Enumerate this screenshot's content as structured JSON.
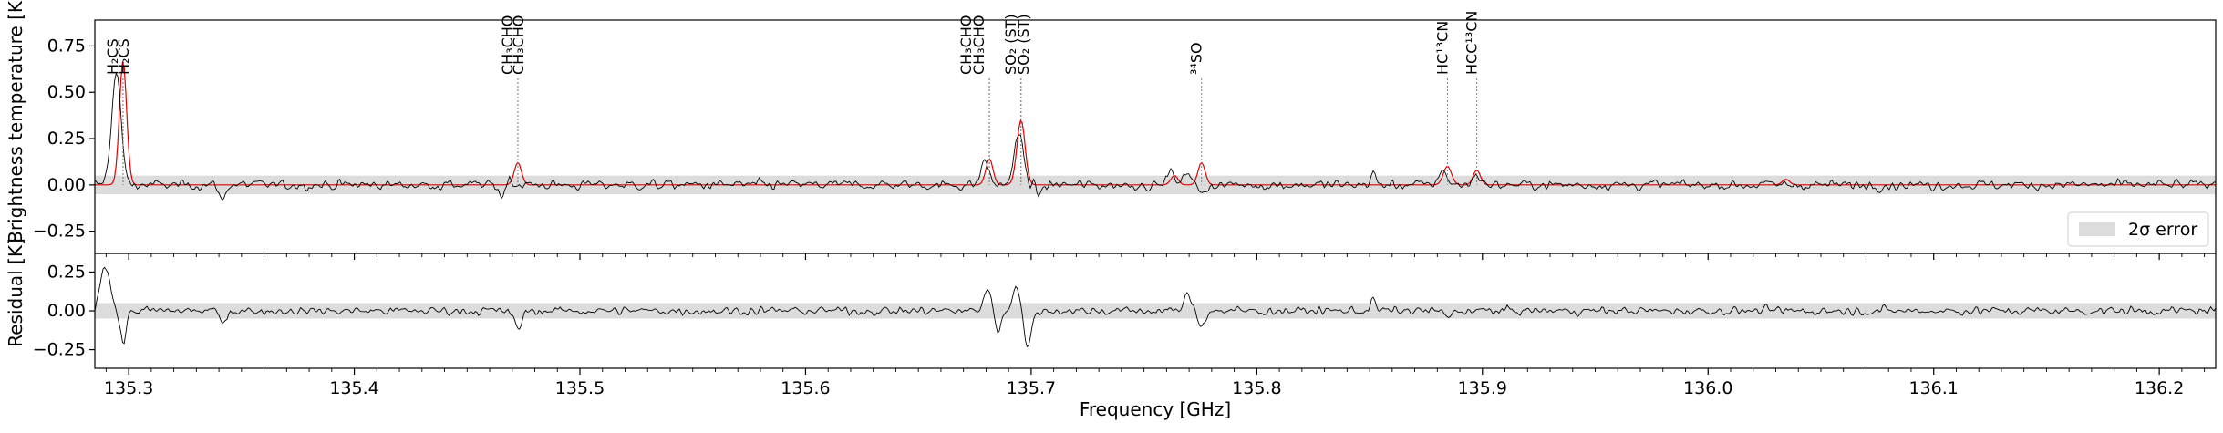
{
  "chart_data": [
    {
      "type": "line",
      "panel": "spectrum",
      "xlabel": "Frequency [GHz]",
      "ylabel": "Brightness temperature [K]",
      "xlim": [
        135.285,
        136.225
      ],
      "ylim": [
        -0.37,
        0.89
      ],
      "x_ticks": [
        "135.3",
        "135.4",
        "135.5",
        "135.6",
        "135.7",
        "135.8",
        "135.9",
        "136.0",
        "136.1",
        "136.2"
      ],
      "y_ticks": [
        "0.75",
        "0.50",
        "0.25",
        "0.00",
        "−0.25"
      ],
      "y_tick_values": [
        0.75,
        0.5,
        0.25,
        0.0,
        -0.25
      ],
      "grid": false,
      "noise_band": {
        "label": "2σ error",
        "ymin": -0.05,
        "ymax": 0.05,
        "color": "#dcdcdc"
      },
      "legend": {
        "position": "lower-right",
        "entries": [
          "2σ error"
        ]
      },
      "colors": {
        "observed": "#000000",
        "model": "#e00000",
        "band": "#dcdcdc",
        "marker": "#808080"
      },
      "line_markers": [
        {
          "label": "H₂CS",
          "freq": 135.2975,
          "label_offset": -6
        },
        {
          "label": "H₂CS",
          "freq": 135.2975,
          "label_offset": 6
        },
        {
          "label": "CH₃CHO",
          "freq": 135.4725,
          "label_offset": -6
        },
        {
          "label": "CH₃CHO",
          "freq": 135.4725,
          "label_offset": 6
        },
        {
          "label": "CH₃CHO",
          "freq": 135.6815,
          "label_offset": -20
        },
        {
          "label": "CH₃CHO",
          "freq": 135.6815,
          "label_offset": -6
        },
        {
          "label": "SO₂ (ST)",
          "freq": 135.6955,
          "label_offset": -6
        },
        {
          "label": "SO₂ (ST)",
          "freq": 135.6955,
          "label_offset": 8
        },
        {
          "label": "³⁴SO",
          "freq": 135.7755,
          "label_offset": 0
        },
        {
          "label": "HC¹³CN",
          "freq": 135.8845,
          "label_offset": 0
        },
        {
          "label": "HCC¹³CN",
          "freq": 135.8975,
          "label_offset": 0
        }
      ],
      "model_peaks": [
        {
          "center": 135.2975,
          "amp": 0.67,
          "width": 0.0016
        },
        {
          "center": 135.4725,
          "amp": 0.12,
          "width": 0.0016
        },
        {
          "center": 135.6815,
          "amp": 0.14,
          "width": 0.0016
        },
        {
          "center": 135.6955,
          "amp": 0.35,
          "width": 0.0018
        },
        {
          "center": 135.7755,
          "amp": 0.12,
          "width": 0.0016
        },
        {
          "center": 135.8845,
          "amp": 0.1,
          "width": 0.0018
        },
        {
          "center": 135.8975,
          "amp": 0.08,
          "width": 0.0016
        },
        {
          "center": 135.7635,
          "amp": 0.05,
          "width": 0.0016
        },
        {
          "center": 136.0345,
          "amp": 0.03,
          "width": 0.0016
        }
      ],
      "observed_peaks": [
        {
          "center": 135.2945,
          "amp": 0.6,
          "width": 0.0021
        },
        {
          "center": 135.4685,
          "amp": 0.04,
          "width": 0.0014
        },
        {
          "center": 135.6795,
          "amp": 0.14,
          "width": 0.0016
        },
        {
          "center": 135.6945,
          "amp": 0.27,
          "width": 0.0021
        },
        {
          "center": 135.7695,
          "amp": 0.08,
          "width": 0.0016
        },
        {
          "center": 135.7615,
          "amp": 0.08,
          "width": 0.0014
        },
        {
          "center": 135.8825,
          "amp": 0.09,
          "width": 0.0016
        },
        {
          "center": 135.8975,
          "amp": 0.06,
          "width": 0.0016
        },
        {
          "center": 135.8515,
          "amp": 0.06,
          "width": 0.0012
        },
        {
          "center": 135.3415,
          "amp": -0.09,
          "width": 0.0012
        },
        {
          "center": 135.4655,
          "amp": -0.07,
          "width": 0.0012
        },
        {
          "center": 135.7755,
          "amp": -0.05,
          "width": 0.0016
        },
        {
          "center": 135.7035,
          "amp": -0.05,
          "width": 0.0014
        }
      ],
      "noise_rms": 0.022
    },
    {
      "type": "line",
      "panel": "residual",
      "xlabel": "Frequency [GHz]",
      "ylabel": "Residual [K]",
      "xlim": [
        135.285,
        136.225
      ],
      "ylim": [
        -0.37,
        0.37
      ],
      "y_ticks": [
        "0.25",
        "0.00",
        "−0.25"
      ],
      "y_tick_values": [
        0.25,
        0.0,
        -0.25
      ],
      "noise_band": {
        "ymin": -0.05,
        "ymax": 0.05,
        "color": "#dcdcdc"
      },
      "residual_features": [
        {
          "center": 135.2895,
          "amp": 0.3,
          "width": 0.0022
        },
        {
          "center": 135.2975,
          "amp": -0.2,
          "width": 0.0014
        },
        {
          "center": 135.4725,
          "amp": -0.12,
          "width": 0.0016
        },
        {
          "center": 135.6805,
          "amp": 0.14,
          "width": 0.0016
        },
        {
          "center": 135.6855,
          "amp": -0.12,
          "width": 0.0014
        },
        {
          "center": 135.6935,
          "amp": 0.18,
          "width": 0.0016
        },
        {
          "center": 135.6985,
          "amp": -0.22,
          "width": 0.0018
        },
        {
          "center": 135.7695,
          "amp": 0.1,
          "width": 0.0016
        },
        {
          "center": 135.7755,
          "amp": -0.09,
          "width": 0.0016
        },
        {
          "center": 135.3415,
          "amp": -0.09,
          "width": 0.0012
        },
        {
          "center": 135.8515,
          "amp": 0.07,
          "width": 0.0012
        },
        {
          "center": 135.8845,
          "amp": -0.05,
          "width": 0.0014
        }
      ],
      "noise_rms": 0.022
    }
  ]
}
